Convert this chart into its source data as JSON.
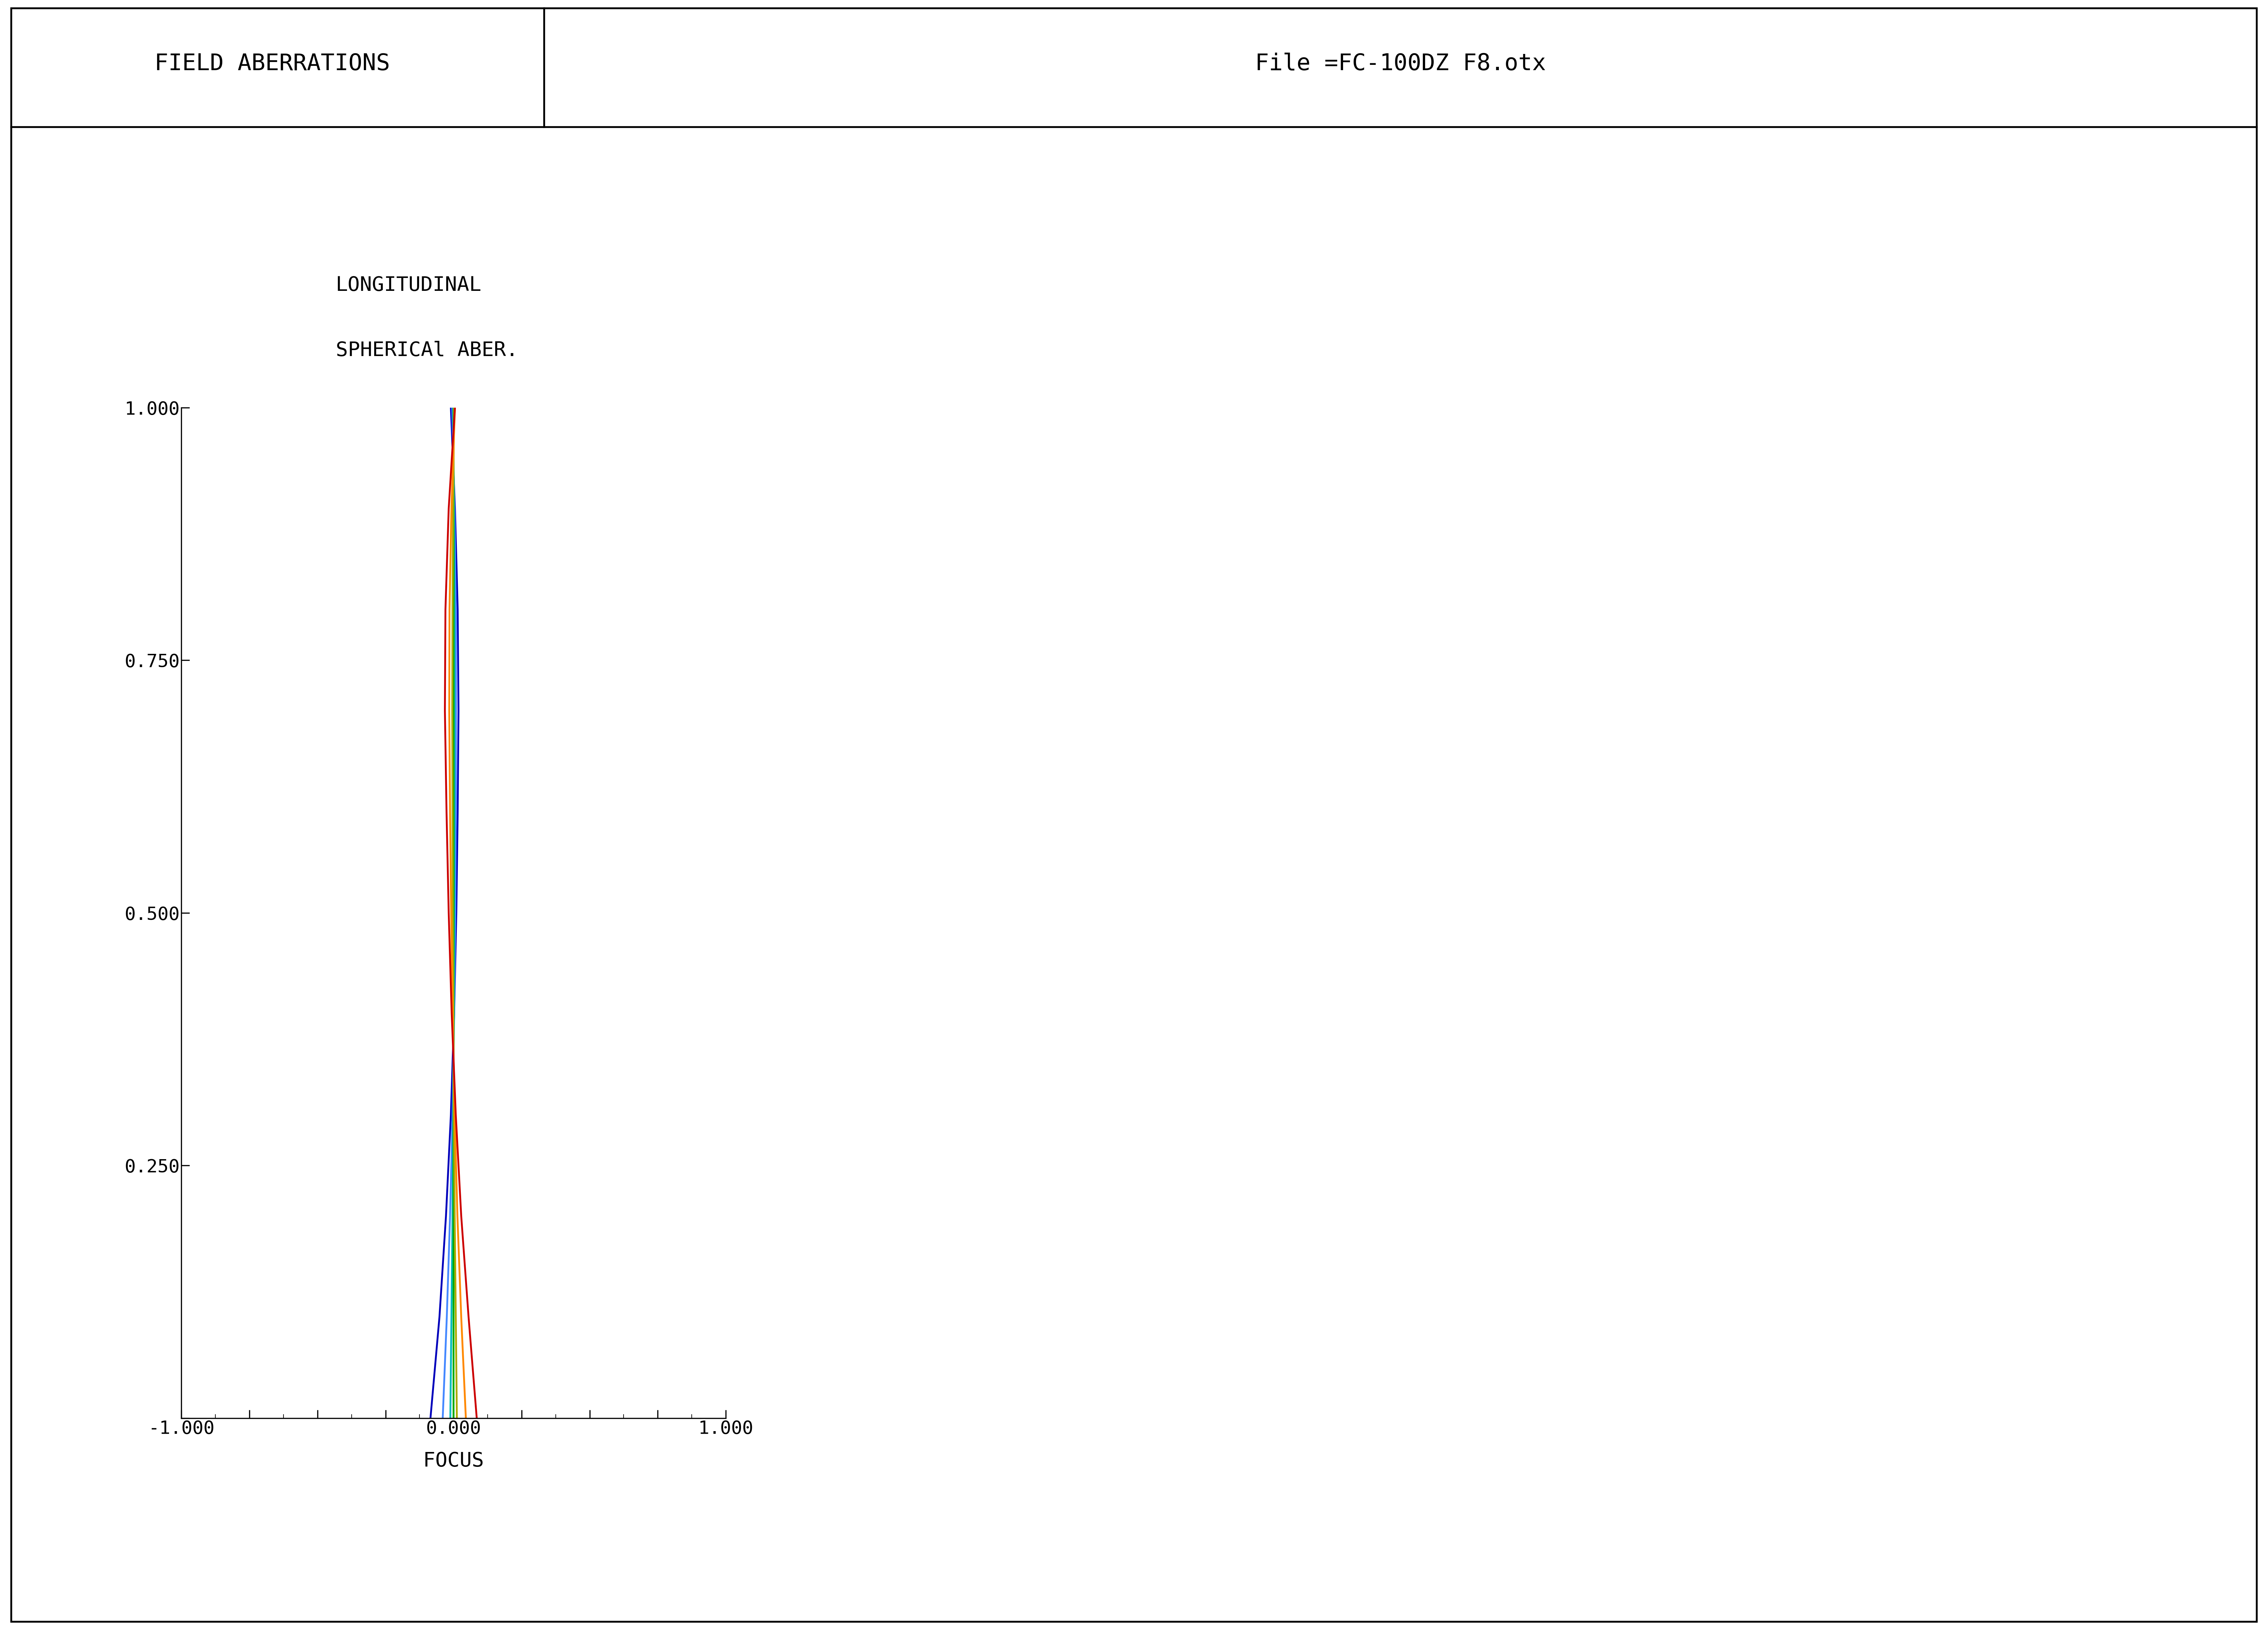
{
  "header_left": "FIELD ABERRATIONS",
  "header_right": "File =FC-100DZ F8.otx",
  "plot_title_line1": "LONGITUDINAL",
  "plot_title_line2": "SPHERICAl ABER.",
  "xlabel": "FOCUS",
  "xlim": [
    -1.0,
    1.0
  ],
  "ylim": [
    0.0,
    1.0
  ],
  "xtick_labels": [
    "-1.000",
    "",
    "",
    "",
    "0.000",
    "",
    "",
    "",
    "1.000"
  ],
  "ytick_labels": [
    "",
    "0.250",
    "0.500",
    "0.750",
    "1.000"
  ],
  "background_color": "#ffffff",
  "header_bg": "#ffffff",
  "curves": [
    {
      "color": "#0000bb",
      "focus": [
        -0.085,
        -0.052,
        -0.028,
        -0.01,
        0.002,
        0.01,
        0.015,
        0.018,
        0.015,
        0.005,
        -0.01
      ],
      "zone": [
        0.0,
        0.1,
        0.2,
        0.3,
        0.4,
        0.5,
        0.6,
        0.7,
        0.8,
        0.9,
        1.0
      ]
    },
    {
      "color": "#4488ff",
      "focus": [
        -0.04,
        -0.025,
        -0.013,
        -0.004,
        0.002,
        0.006,
        0.008,
        0.009,
        0.008,
        0.003,
        -0.005
      ],
      "zone": [
        0.0,
        0.1,
        0.2,
        0.3,
        0.4,
        0.5,
        0.6,
        0.7,
        0.8,
        0.9,
        1.0
      ]
    },
    {
      "color": "#00bbbb",
      "focus": [
        -0.012,
        -0.008,
        -0.004,
        -0.001,
        0.001,
        0.002,
        0.003,
        0.003,
        0.003,
        0.001,
        -0.001
      ],
      "zone": [
        0.0,
        0.1,
        0.2,
        0.3,
        0.4,
        0.5,
        0.6,
        0.7,
        0.8,
        0.9,
        1.0
      ]
    },
    {
      "color": "#00aa00",
      "focus": [
        0.0,
        0.0,
        0.0,
        0.0,
        0.0,
        0.0,
        0.0,
        0.0,
        0.0,
        0.0,
        0.0
      ],
      "zone": [
        0.0,
        0.1,
        0.2,
        0.3,
        0.4,
        0.5,
        0.6,
        0.7,
        0.8,
        0.9,
        1.0
      ]
    },
    {
      "color": "#aaaa00",
      "focus": [
        0.012,
        0.008,
        0.004,
        0.001,
        -0.001,
        -0.003,
        -0.004,
        -0.005,
        -0.004,
        -0.002,
        0.002
      ],
      "zone": [
        0.0,
        0.1,
        0.2,
        0.3,
        0.4,
        0.5,
        0.6,
        0.7,
        0.8,
        0.9,
        1.0
      ]
    },
    {
      "color": "#ff8800",
      "focus": [
        0.045,
        0.028,
        0.014,
        0.004,
        -0.003,
        -0.009,
        -0.013,
        -0.016,
        -0.015,
        -0.008,
        0.005
      ],
      "zone": [
        0.0,
        0.1,
        0.2,
        0.3,
        0.4,
        0.5,
        0.6,
        0.7,
        0.8,
        0.9,
        1.0
      ]
    },
    {
      "color": "#cc0000",
      "focus": [
        0.085,
        0.055,
        0.028,
        0.008,
        -0.007,
        -0.018,
        -0.026,
        -0.032,
        -0.03,
        -0.018,
        0.005
      ],
      "zone": [
        0.0,
        0.1,
        0.2,
        0.3,
        0.4,
        0.5,
        0.6,
        0.7,
        0.8,
        0.9,
        1.0
      ]
    }
  ]
}
